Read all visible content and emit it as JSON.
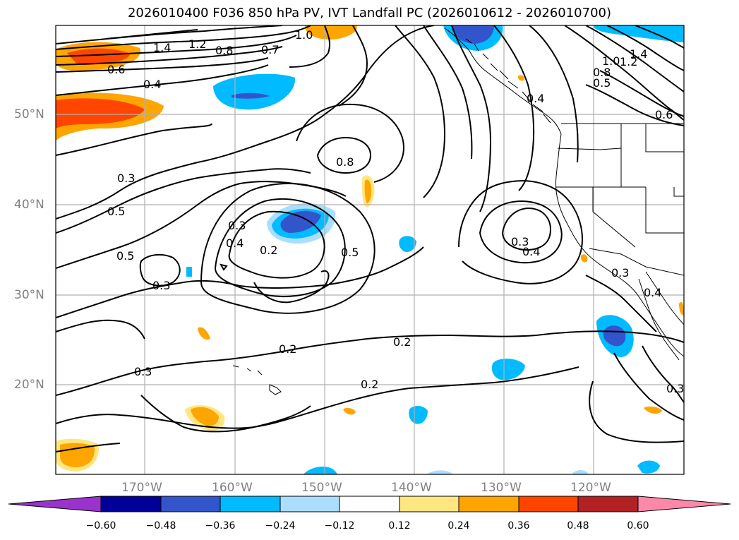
{
  "title": "2026010400 F036 850 hPa PV, IVT Landfall PC (2026010612 - 2026010700)",
  "lat_labels": [
    "50°N",
    "40°N",
    "30°N",
    "20°N"
  ],
  "lon_labels": [
    "170°W",
    "160°W",
    "150°W",
    "140°W",
    "130°W",
    "120°W"
  ],
  "colorbar": {
    "colors": [
      "#9933cc",
      "#000099",
      "#3355cc",
      "#00bbff",
      "#aadeff",
      "#ffffff",
      "#ffe680",
      "#ffa500",
      "#ff4500",
      "#b22222",
      "#ff88aa"
    ],
    "ticks": [
      "−0.60",
      "−0.48",
      "−0.36",
      "−0.24",
      "−0.12",
      "0.12",
      "0.24",
      "0.36",
      "0.48",
      "0.60"
    ]
  },
  "contour_labels": [
    "1.4",
    "1.2",
    "0.8",
    "0.7",
    "0.6",
    "0.4",
    "1.0",
    "0.3",
    "0.5",
    "0.3",
    "0.4",
    "0.2",
    "0.5",
    "0.3",
    "0.5",
    "0.4",
    "0.3",
    "0.2",
    "0.2",
    "0.3",
    "0.2",
    "0.3",
    "0.4",
    "1.4",
    "1.2",
    "1.0",
    "0.8",
    "0.5",
    "0.6",
    "0.8",
    "0.4"
  ]
}
